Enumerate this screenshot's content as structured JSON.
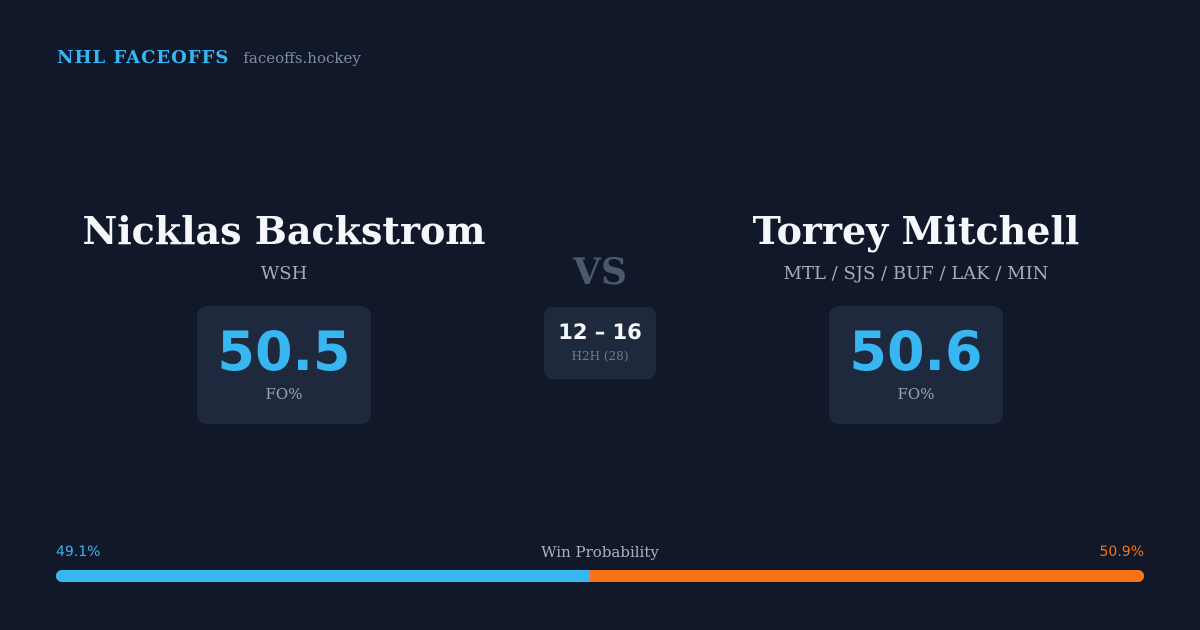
{
  "header": {
    "brand": "NHL FACEOFFS",
    "site": "faceoffs.hockey"
  },
  "player_left": {
    "name": "Nicklas Backstrom",
    "team": "WSH",
    "fo_value": "50.5",
    "fo_label": "FO%"
  },
  "versus": {
    "label": "VS",
    "h2h_score": "12 – 16",
    "h2h_label": "H2H (28)"
  },
  "player_right": {
    "name": "Torrey Mitchell",
    "team": "MTL / SJS / BUF / LAK / MIN",
    "fo_value": "50.6",
    "fo_label": "FO%"
  },
  "win_probability": {
    "title": "Win Probability",
    "left_label": "49.1%",
    "right_label": "50.9%",
    "left_percent": 49.1,
    "right_percent": 50.9
  },
  "colors": {
    "accent_blue": "#38b6f2",
    "accent_orange": "#f97316",
    "background": "#101829",
    "card": "#1e293d"
  }
}
